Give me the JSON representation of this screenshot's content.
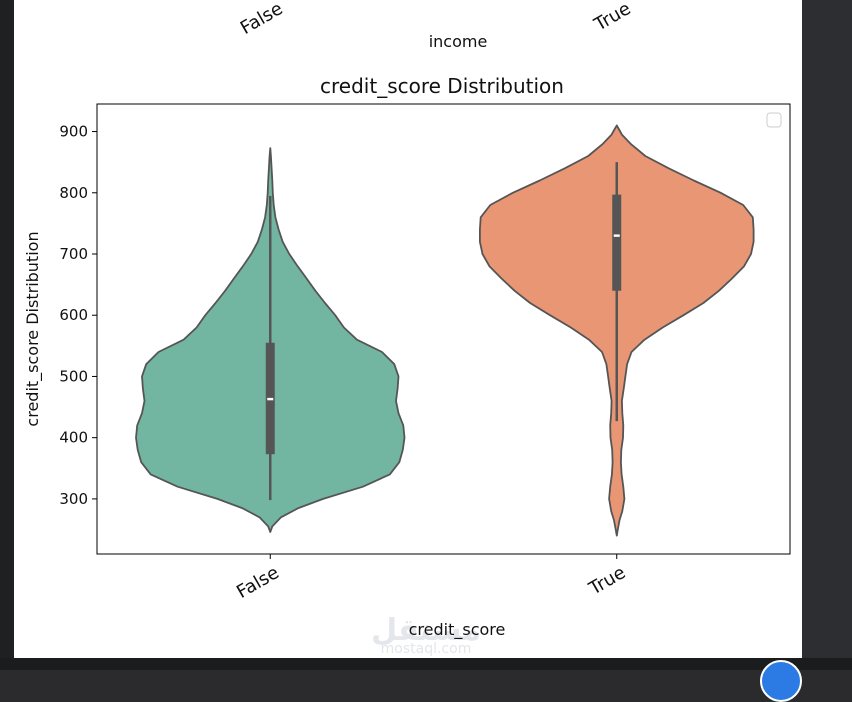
{
  "top_partial": {
    "ticks": [
      "False",
      "True"
    ],
    "xlabel": "income"
  },
  "chart_data": {
    "type": "violin",
    "title": "credit_score Distribution",
    "xlabel": "credit_score",
    "ylabel": "credit_score Distribution",
    "categories": [
      "False",
      "True"
    ],
    "ylim": [
      210,
      945
    ],
    "yticks": [
      300,
      400,
      500,
      600,
      700,
      800,
      900
    ],
    "colors": [
      "#72b6a1",
      "#e99675"
    ],
    "edge_color": "#555555",
    "legend": {
      "placement": "top-right",
      "entries": []
    },
    "grid": false,
    "series": [
      {
        "category": "False",
        "color": "#72b6a1",
        "density": [
          [
            246,
            0
          ],
          [
            255,
            0.012
          ],
          [
            270,
            0.062
          ],
          [
            285,
            0.162
          ],
          [
            300,
            0.305
          ],
          [
            320,
            0.535
          ],
          [
            340,
            0.69
          ],
          [
            360,
            0.745
          ],
          [
            380,
            0.765
          ],
          [
            400,
            0.775
          ],
          [
            420,
            0.768
          ],
          [
            440,
            0.74
          ],
          [
            460,
            0.726
          ],
          [
            480,
            0.735
          ],
          [
            500,
            0.74
          ],
          [
            520,
            0.716
          ],
          [
            540,
            0.645
          ],
          [
            560,
            0.5
          ],
          [
            580,
            0.425
          ],
          [
            600,
            0.375
          ],
          [
            620,
            0.316
          ],
          [
            640,
            0.26
          ],
          [
            660,
            0.21
          ],
          [
            680,
            0.158
          ],
          [
            700,
            0.11
          ],
          [
            720,
            0.072
          ],
          [
            740,
            0.048
          ],
          [
            760,
            0.03
          ],
          [
            780,
            0.02
          ],
          [
            800,
            0.015
          ],
          [
            820,
            0.012
          ],
          [
            840,
            0.008
          ],
          [
            860,
            0.004
          ],
          [
            873,
            0
          ]
        ],
        "box": {
          "whisker_low": 298,
          "q1": 373,
          "median": 463,
          "q3": 555,
          "whisker_high": 795
        }
      },
      {
        "category": "True",
        "color": "#e99675",
        "density": [
          [
            240,
            0
          ],
          [
            250,
            0.006
          ],
          [
            265,
            0.016
          ],
          [
            280,
            0.032
          ],
          [
            300,
            0.044
          ],
          [
            320,
            0.038
          ],
          [
            340,
            0.028
          ],
          [
            360,
            0.024
          ],
          [
            380,
            0.026
          ],
          [
            400,
            0.036
          ],
          [
            420,
            0.038
          ],
          [
            440,
            0.032
          ],
          [
            460,
            0.03
          ],
          [
            480,
            0.04
          ],
          [
            500,
            0.05
          ],
          [
            520,
            0.06
          ],
          [
            540,
            0.085
          ],
          [
            560,
            0.16
          ],
          [
            580,
            0.265
          ],
          [
            600,
            0.385
          ],
          [
            620,
            0.5
          ],
          [
            640,
            0.59
          ],
          [
            660,
            0.665
          ],
          [
            680,
            0.735
          ],
          [
            700,
            0.775
          ],
          [
            720,
            0.79
          ],
          [
            740,
            0.79
          ],
          [
            760,
            0.785
          ],
          [
            780,
            0.73
          ],
          [
            800,
            0.6
          ],
          [
            820,
            0.445
          ],
          [
            840,
            0.3
          ],
          [
            860,
            0.165
          ],
          [
            880,
            0.08
          ],
          [
            895,
            0.03
          ],
          [
            905,
            0.01
          ],
          [
            910,
            0
          ]
        ],
        "box": {
          "whisker_low": 427,
          "q1": 640,
          "median": 730,
          "q3": 797,
          "whisker_high": 850
        }
      }
    ]
  },
  "watermark": {
    "arabic": "مستقل",
    "latin": "mostaql.com"
  }
}
